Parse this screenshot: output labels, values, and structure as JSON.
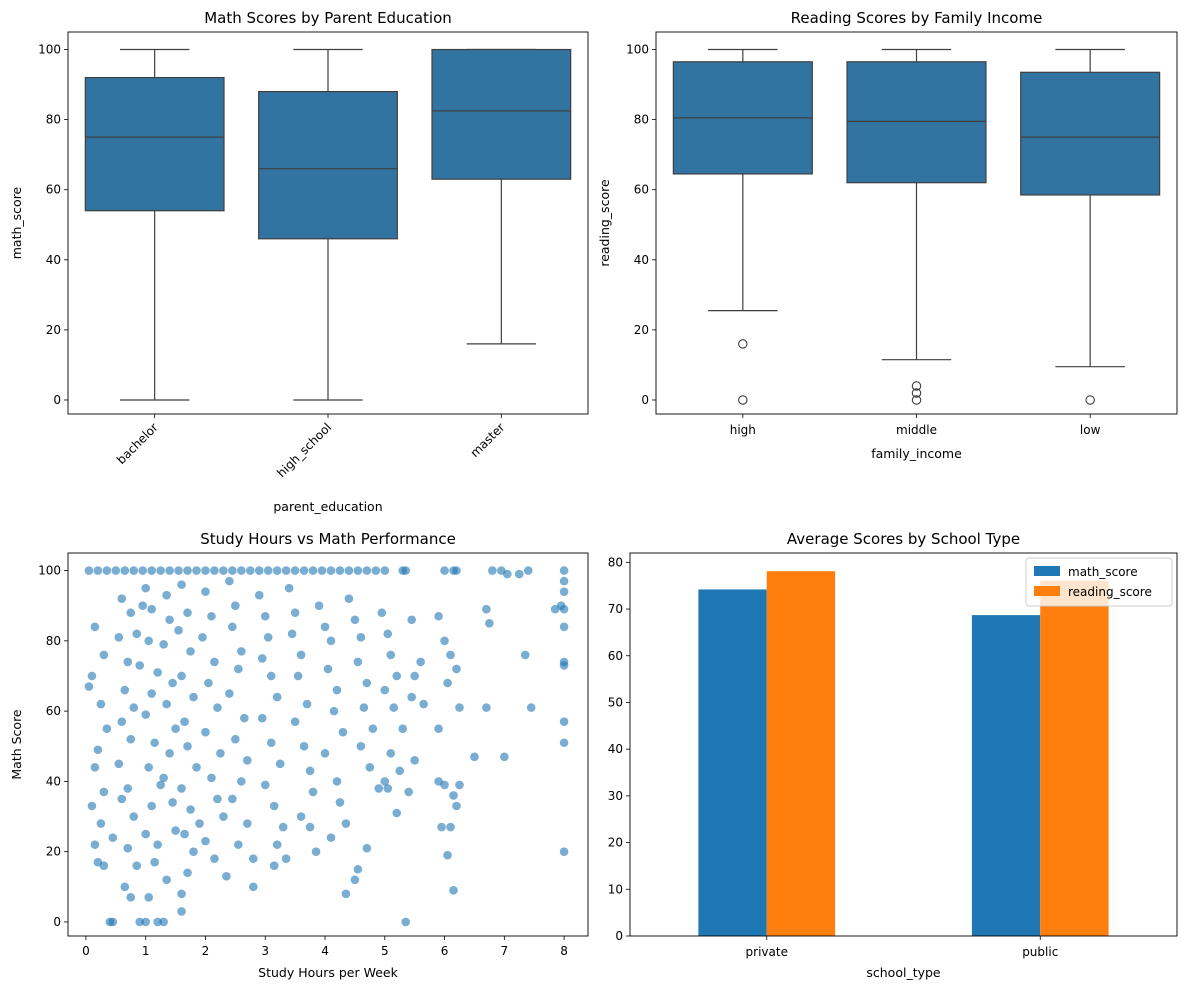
{
  "colors": {
    "box_fill": "#3274a1",
    "box_line": "#3f3f3f",
    "scatter": "#1f77b4",
    "bar_math": "#1f77b4",
    "bar_reading": "#ff7f0e"
  },
  "chart_data": [
    {
      "type": "box",
      "title": "Math Scores by Parent Education",
      "xlabel": "parent_education",
      "ylabel": "math_score",
      "ylim": [
        -4,
        105
      ],
      "yticks": [
        "0",
        "20",
        "40",
        "60",
        "80",
        "100"
      ],
      "categories": [
        "bachelor",
        "high_school",
        "master"
      ],
      "boxes": [
        {
          "whisker_low": 0,
          "q1": 54,
          "median": 75,
          "q3": 92,
          "whisker_high": 100,
          "outliers": []
        },
        {
          "whisker_low": 0,
          "q1": 46,
          "median": 66,
          "q3": 88,
          "whisker_high": 100,
          "outliers": []
        },
        {
          "whisker_low": 16,
          "q1": 63,
          "median": 82.5,
          "q3": 100,
          "whisker_high": 100,
          "outliers": []
        }
      ]
    },
    {
      "type": "box",
      "title": "Reading Scores by Family Income",
      "xlabel": "family_income",
      "ylabel": "reading_score",
      "ylim": [
        -4,
        105
      ],
      "yticks": [
        "0",
        "20",
        "40",
        "60",
        "80",
        "100"
      ],
      "categories": [
        "high",
        "middle",
        "low"
      ],
      "boxes": [
        {
          "whisker_low": 25.5,
          "q1": 64.5,
          "median": 80.5,
          "q3": 96.5,
          "whisker_high": 100,
          "outliers": [
            16,
            0
          ]
        },
        {
          "whisker_low": 11.5,
          "q1": 62,
          "median": 79.5,
          "q3": 96.5,
          "whisker_high": 100,
          "outliers": [
            4,
            2,
            0
          ]
        },
        {
          "whisker_low": 9.5,
          "q1": 58.5,
          "median": 75,
          "q3": 93.5,
          "whisker_high": 100,
          "outliers": [
            0
          ]
        }
      ]
    },
    {
      "type": "scatter",
      "title": "Study Hours vs Math Performance",
      "xlabel": "Study Hours per Week",
      "ylabel": "Math Score",
      "xlim": [
        -0.3,
        8.4
      ],
      "ylim": [
        -4,
        105
      ],
      "xticks": [
        "0",
        "1",
        "2",
        "3",
        "4",
        "5",
        "6",
        "7",
        "8"
      ],
      "yticks": [
        "0",
        "20",
        "40",
        "60",
        "80",
        "100"
      ],
      "points": [
        [
          0.05,
          100
        ],
        [
          0.2,
          100
        ],
        [
          0.35,
          100
        ],
        [
          0.5,
          100
        ],
        [
          0.65,
          100
        ],
        [
          0.8,
          100
        ],
        [
          0.95,
          100
        ],
        [
          1.1,
          100
        ],
        [
          1.25,
          100
        ],
        [
          1.4,
          100
        ],
        [
          1.55,
          100
        ],
        [
          1.7,
          100
        ],
        [
          1.85,
          100
        ],
        [
          2.0,
          100
        ],
        [
          2.15,
          100
        ],
        [
          2.3,
          100
        ],
        [
          2.45,
          100
        ],
        [
          2.6,
          100
        ],
        [
          2.75,
          100
        ],
        [
          2.9,
          100
        ],
        [
          3.05,
          100
        ],
        [
          3.2,
          100
        ],
        [
          3.35,
          100
        ],
        [
          3.5,
          100
        ],
        [
          3.65,
          100
        ],
        [
          3.8,
          100
        ],
        [
          3.95,
          100
        ],
        [
          4.1,
          100
        ],
        [
          4.25,
          100
        ],
        [
          4.4,
          100
        ],
        [
          4.55,
          100
        ],
        [
          4.7,
          100
        ],
        [
          4.85,
          100
        ],
        [
          5.0,
          100
        ],
        [
          5.3,
          100
        ],
        [
          5.35,
          100
        ],
        [
          6.0,
          100
        ],
        [
          6.15,
          100
        ],
        [
          6.2,
          100
        ],
        [
          6.8,
          100
        ],
        [
          6.95,
          100
        ],
        [
          7.4,
          100
        ],
        [
          8.0,
          100
        ],
        [
          0.15,
          84
        ],
        [
          0.3,
          76
        ],
        [
          0.1,
          70
        ],
        [
          0.25,
          62
        ],
        [
          0.05,
          67
        ],
        [
          0.35,
          55
        ],
        [
          0.2,
          49
        ],
        [
          0.15,
          44
        ],
        [
          0.3,
          37
        ],
        [
          0.1,
          33
        ],
        [
          0.25,
          28
        ],
        [
          0.15,
          22
        ],
        [
          0.2,
          17
        ],
        [
          0.3,
          16
        ],
        [
          0.45,
          24
        ],
        [
          0.4,
          0
        ],
        [
          0.45,
          0
        ],
        [
          0.6,
          92
        ],
        [
          0.75,
          88
        ],
        [
          0.55,
          81
        ],
        [
          0.7,
          74
        ],
        [
          0.65,
          66
        ],
        [
          0.8,
          61
        ],
        [
          0.6,
          57
        ],
        [
          0.75,
          52
        ],
        [
          0.55,
          45
        ],
        [
          0.7,
          38
        ],
        [
          0.6,
          35
        ],
        [
          0.8,
          30
        ],
        [
          0.7,
          21
        ],
        [
          0.85,
          16
        ],
        [
          0.65,
          10
        ],
        [
          0.75,
          7
        ],
        [
          0.9,
          0
        ],
        [
          0.95,
          90
        ],
        [
          0.85,
          82
        ],
        [
          0.9,
          73
        ],
        [
          1.0,
          95
        ],
        [
          1.1,
          89
        ],
        [
          1.05,
          80
        ],
        [
          1.2,
          71
        ],
        [
          1.1,
          65
        ],
        [
          1.0,
          59
        ],
        [
          1.15,
          51
        ],
        [
          1.05,
          44
        ],
        [
          1.25,
          39
        ],
        [
          1.1,
          33
        ],
        [
          1.0,
          25
        ],
        [
          1.2,
          22
        ],
        [
          1.15,
          17
        ],
        [
          1.05,
          7
        ],
        [
          1.0,
          0
        ],
        [
          1.2,
          0
        ],
        [
          1.3,
          0
        ],
        [
          1.35,
          93
        ],
        [
          1.4,
          86
        ],
        [
          1.3,
          79
        ],
        [
          1.45,
          68
        ],
        [
          1.35,
          62
        ],
        [
          1.5,
          55
        ],
        [
          1.4,
          48
        ],
        [
          1.3,
          41
        ],
        [
          1.45,
          34
        ],
        [
          1.5,
          26
        ],
        [
          1.35,
          12
        ],
        [
          1.6,
          96
        ],
        [
          1.7,
          88
        ],
        [
          1.55,
          83
        ],
        [
          1.75,
          77
        ],
        [
          1.6,
          70
        ],
        [
          1.8,
          64
        ],
        [
          1.65,
          57
        ],
        [
          1.7,
          50
        ],
        [
          1.85,
          44
        ],
        [
          1.6,
          38
        ],
        [
          1.75,
          32
        ],
        [
          1.9,
          28
        ],
        [
          1.65,
          25
        ],
        [
          1.8,
          20
        ],
        [
          1.7,
          14
        ],
        [
          1.6,
          8
        ],
        [
          1.6,
          3
        ],
        [
          2.0,
          94
        ],
        [
          2.1,
          87
        ],
        [
          1.95,
          81
        ],
        [
          2.15,
          74
        ],
        [
          2.05,
          68
        ],
        [
          2.2,
          61
        ],
        [
          2.0,
          54
        ],
        [
          2.25,
          48
        ],
        [
          2.1,
          41
        ],
        [
          2.2,
          35
        ],
        [
          2.3,
          30
        ],
        [
          2.0,
          23
        ],
        [
          2.15,
          18
        ],
        [
          2.35,
          13
        ],
        [
          2.4,
          97
        ],
        [
          2.5,
          90
        ],
        [
          2.45,
          84
        ],
        [
          2.6,
          77
        ],
        [
          2.55,
          72
        ],
        [
          2.4,
          65
        ],
        [
          2.65,
          58
        ],
        [
          2.5,
          52
        ],
        [
          2.7,
          46
        ],
        [
          2.6,
          40
        ],
        [
          2.45,
          35
        ],
        [
          2.7,
          28
        ],
        [
          2.55,
          22
        ],
        [
          2.8,
          18
        ],
        [
          2.8,
          10
        ],
        [
          2.9,
          93
        ],
        [
          3.0,
          87
        ],
        [
          3.05,
          81
        ],
        [
          2.95,
          75
        ],
        [
          3.1,
          70
        ],
        [
          3.2,
          64
        ],
        [
          2.95,
          58
        ],
        [
          3.1,
          51
        ],
        [
          3.25,
          45
        ],
        [
          3.0,
          39
        ],
        [
          3.15,
          33
        ],
        [
          3.3,
          27
        ],
        [
          3.2,
          22
        ],
        [
          3.35,
          18
        ],
        [
          3.15,
          16
        ],
        [
          3.4,
          95
        ],
        [
          3.5,
          88
        ],
        [
          3.45,
          82
        ],
        [
          3.6,
          76
        ],
        [
          3.55,
          70
        ],
        [
          3.7,
          62
        ],
        [
          3.5,
          57
        ],
        [
          3.65,
          50
        ],
        [
          3.75,
          43
        ],
        [
          3.8,
          37
        ],
        [
          3.6,
          30
        ],
        [
          3.75,
          27
        ],
        [
          3.85,
          20
        ],
        [
          3.9,
          90
        ],
        [
          4.0,
          84
        ],
        [
          4.1,
          80
        ],
        [
          4.05,
          72
        ],
        [
          4.2,
          66
        ],
        [
          4.15,
          60
        ],
        [
          4.3,
          54
        ],
        [
          4.0,
          48
        ],
        [
          4.2,
          40
        ],
        [
          4.25,
          34
        ],
        [
          4.35,
          28
        ],
        [
          4.1,
          24
        ],
        [
          4.35,
          8
        ],
        [
          4.4,
          92
        ],
        [
          4.5,
          86
        ],
        [
          4.6,
          81
        ],
        [
          4.55,
          74
        ],
        [
          4.7,
          68
        ],
        [
          4.65,
          61
        ],
        [
          4.8,
          55
        ],
        [
          4.6,
          50
        ],
        [
          4.75,
          44
        ],
        [
          4.9,
          38
        ],
        [
          4.5,
          12
        ],
        [
          4.55,
          15
        ],
        [
          4.7,
          21
        ],
        [
          4.95,
          88
        ],
        [
          5.05,
          82
        ],
        [
          5.1,
          76
        ],
        [
          5.2,
          70
        ],
        [
          5.0,
          66
        ],
        [
          5.15,
          61
        ],
        [
          5.3,
          55
        ],
        [
          5.1,
          48
        ],
        [
          5.25,
          43
        ],
        [
          5.05,
          38
        ],
        [
          5.2,
          31
        ],
        [
          5.0,
          40
        ],
        [
          5.35,
          0
        ],
        [
          5.45,
          86
        ],
        [
          5.6,
          74
        ],
        [
          5.5,
          70
        ],
        [
          5.45,
          64
        ],
        [
          5.65,
          62
        ],
        [
          5.4,
          37
        ],
        [
          5.5,
          46
        ],
        [
          5.9,
          87
        ],
        [
          6.0,
          80
        ],
        [
          6.1,
          76
        ],
        [
          6.2,
          72
        ],
        [
          6.05,
          68
        ],
        [
          5.9,
          55
        ],
        [
          6.15,
          36
        ],
        [
          6.2,
          33
        ],
        [
          5.9,
          40
        ],
        [
          6.0,
          39
        ],
        [
          6.1,
          27
        ],
        [
          6.05,
          19
        ],
        [
          6.15,
          9
        ],
        [
          5.95,
          27
        ],
        [
          6.25,
          39
        ],
        [
          6.25,
          61
        ],
        [
          6.5,
          47
        ],
        [
          6.7,
          89
        ],
        [
          6.75,
          85
        ],
        [
          6.7,
          61
        ],
        [
          7.0,
          47
        ],
        [
          7.05,
          99
        ],
        [
          7.25,
          99
        ],
        [
          7.35,
          76
        ],
        [
          7.45,
          61
        ],
        [
          7.85,
          89
        ],
        [
          8.0,
          97
        ],
        [
          8.0,
          94
        ],
        [
          8.0,
          89
        ],
        [
          8.0,
          84
        ],
        [
          8.0,
          74
        ],
        [
          8.0,
          73
        ],
        [
          8.0,
          57
        ],
        [
          8.0,
          51
        ],
        [
          8.0,
          20
        ],
        [
          7.95,
          90
        ]
      ]
    },
    {
      "type": "bar",
      "title": "Average Scores by School Type",
      "xlabel": "school_type",
      "ylabel": "",
      "ylim": [
        0,
        82
      ],
      "yticks": [
        "0",
        "10",
        "20",
        "30",
        "40",
        "50",
        "60",
        "70",
        "80"
      ],
      "categories": [
        "private",
        "public"
      ],
      "series": [
        {
          "name": "math_score",
          "values": [
            74.2,
            68.7
          ]
        },
        {
          "name": "reading_score",
          "values": [
            78.1,
            76.1
          ]
        }
      ],
      "legend": "top-right"
    }
  ]
}
